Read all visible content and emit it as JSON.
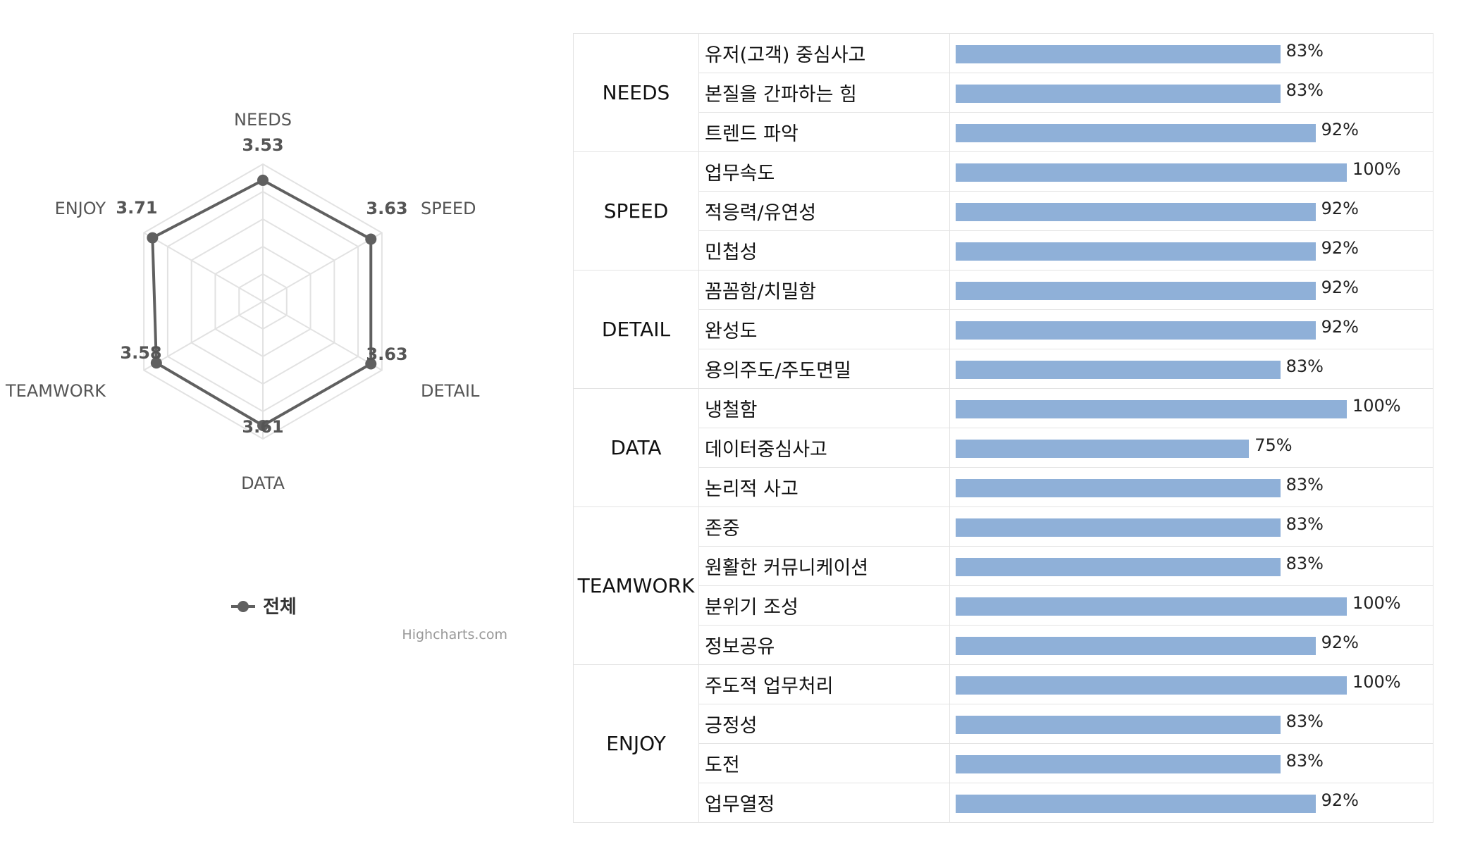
{
  "chart_data": [
    {
      "type": "radar",
      "axes": [
        "NEEDS",
        "SPEED",
        "DETAIL",
        "DATA",
        "TEAMWORK",
        "ENJOY"
      ],
      "series": [
        {
          "name": "전체",
          "values": [
            3.53,
            3.63,
            3.63,
            3.61,
            3.58,
            3.71
          ],
          "color": "#606060"
        }
      ],
      "value_labels": [
        "3.53",
        "3.63",
        "3.63",
        "3.61",
        "3.58",
        "3.71"
      ],
      "ylim": [
        0,
        4
      ],
      "grid_levels": 5,
      "grid": true,
      "legend": "bottom-center",
      "credit": "Highcharts.com"
    },
    {
      "type": "table",
      "bar_color": "#8fb0d8",
      "groups": [
        {
          "category": "NEEDS",
          "items": [
            {
              "label": "유저(고객) 중심사고",
              "value": 83,
              "pct": "83%"
            },
            {
              "label": "본질을 간파하는 힘",
              "value": 83,
              "pct": "83%"
            },
            {
              "label": "트렌드 파악",
              "value": 92,
              "pct": "92%"
            }
          ]
        },
        {
          "category": "SPEED",
          "items": [
            {
              "label": "업무속도",
              "value": 100,
              "pct": "100%"
            },
            {
              "label": "적응력/유연성",
              "value": 92,
              "pct": "92%"
            },
            {
              "label": "민첩성",
              "value": 92,
              "pct": "92%"
            }
          ]
        },
        {
          "category": "DETAIL",
          "items": [
            {
              "label": "꼼꼼함/치밀함",
              "value": 92,
              "pct": "92%"
            },
            {
              "label": "완성도",
              "value": 92,
              "pct": "92%"
            },
            {
              "label": "용의주도/주도면밀",
              "value": 83,
              "pct": "83%"
            }
          ]
        },
        {
          "category": "DATA",
          "items": [
            {
              "label": "냉철함",
              "value": 100,
              "pct": "100%"
            },
            {
              "label": "데이터중심사고",
              "value": 75,
              "pct": "75%"
            },
            {
              "label": "논리적 사고",
              "value": 83,
              "pct": "83%"
            }
          ]
        },
        {
          "category": "TEAMWORK",
          "items": [
            {
              "label": "존중",
              "value": 83,
              "pct": "83%"
            },
            {
              "label": "원활한 커뮤니케이션",
              "value": 83,
              "pct": "83%"
            },
            {
              "label": "분위기 조성",
              "value": 100,
              "pct": "100%"
            },
            {
              "label": "정보공유",
              "value": 92,
              "pct": "92%"
            }
          ]
        },
        {
          "category": "ENJOY",
          "items": [
            {
              "label": "주도적 업무처리",
              "value": 100,
              "pct": "100%"
            },
            {
              "label": "긍정성",
              "value": 83,
              "pct": "83%"
            },
            {
              "label": "도전",
              "value": 83,
              "pct": "83%"
            },
            {
              "label": "업무열정",
              "value": 92,
              "pct": "92%"
            }
          ]
        }
      ]
    }
  ]
}
